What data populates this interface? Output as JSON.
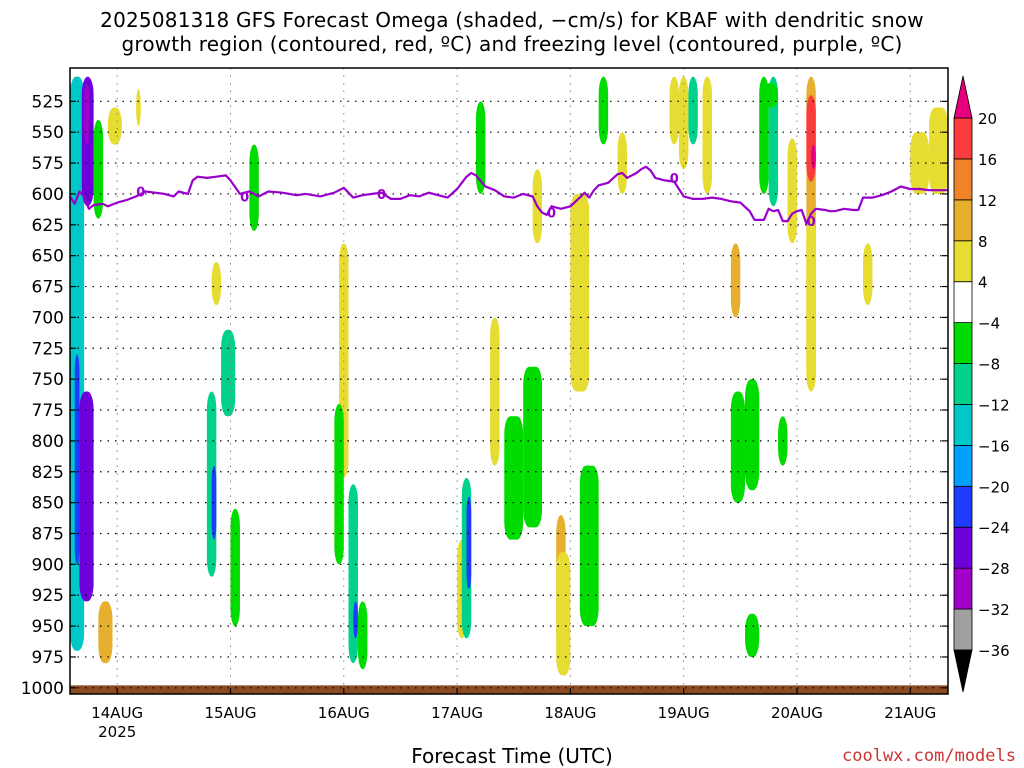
{
  "title_line1": "2025081318 GFS Forecast Omega (shaded, −cm/s) for KBAF with dendritic snow",
  "title_line2": "growth region (contoured, red, ºC) and freezing level (contoured, purple, ºC)",
  "xlabel": "Forecast Time (UTC)",
  "credit": "coolwx.com/models",
  "colors": {
    "credit": "#cc3333",
    "freezing_contour": "#9900cc",
    "terrain": "#8b4a22",
    "grid": "#000000"
  },
  "chart_data": {
    "type": "heatmap",
    "xlabel": "Forecast Time (UTC)",
    "ylabel": "",
    "y_scale": "pressure (hPa, inverted)",
    "ylim": [
      1005,
      498
    ],
    "xlim_hours_from_14AUG00Z": [
      -10,
      176
    ],
    "y_ticks": [
      525,
      550,
      575,
      600,
      625,
      650,
      675,
      700,
      725,
      750,
      775,
      800,
      825,
      850,
      875,
      900,
      925,
      950,
      975,
      1000
    ],
    "x_ticks": [
      {
        "label": "14AUG",
        "hours": 0
      },
      {
        "label": "15AUG",
        "hours": 24
      },
      {
        "label": "16AUG",
        "hours": 48
      },
      {
        "label": "17AUG",
        "hours": 72
      },
      {
        "label": "18AUG",
        "hours": 96
      },
      {
        "label": "19AUG",
        "hours": 120
      },
      {
        "label": "20AUG",
        "hours": 144
      },
      {
        "label": "21AUG",
        "hours": 168
      }
    ],
    "x_year_label": "2025",
    "grid": true,
    "colorbar": {
      "levels": [
        -36,
        -32,
        -28,
        -24,
        -20,
        -16,
        -12,
        -8,
        -4,
        4,
        8,
        12,
        16,
        20
      ],
      "tick_labels": [
        "−36",
        "−32",
        "−28",
        "−24",
        "−20",
        "−16",
        "−12",
        "−8",
        "−4",
        "4",
        "8",
        "12",
        "16",
        "20"
      ],
      "colors": [
        "#000000",
        "#a0a0a0",
        "#a000c8",
        "#6e00dc",
        "#1e3cff",
        "#00a0ff",
        "#00c8c8",
        "#00d28c",
        "#00dc00",
        "#ffffff",
        "#e6dc32",
        "#e6af2d",
        "#f08228",
        "#fa3c3c",
        "#e6007d"
      ]
    },
    "freezing_level": {
      "contour_label": "0",
      "points": [
        [
          -10,
          602
        ],
        [
          -9,
          608
        ],
        [
          -8,
          598
        ],
        [
          -7,
          602
        ],
        [
          -6,
          612
        ],
        [
          -5,
          609
        ],
        [
          -3,
          608
        ],
        [
          -2,
          610
        ],
        [
          0,
          607
        ],
        [
          2,
          605
        ],
        [
          4,
          602
        ],
        [
          6,
          598
        ],
        [
          8,
          599
        ],
        [
          10,
          600
        ],
        [
          12,
          602
        ],
        [
          13,
          598
        ],
        [
          15,
          600
        ],
        [
          16,
          589
        ],
        [
          17,
          586
        ],
        [
          19,
          587
        ],
        [
          21,
          586
        ],
        [
          23,
          585
        ],
        [
          24,
          589
        ],
        [
          26,
          600
        ],
        [
          28,
          598
        ],
        [
          30,
          602
        ],
        [
          32,
          598
        ],
        [
          35,
          599
        ],
        [
          38,
          601
        ],
        [
          40,
          600
        ],
        [
          43,
          602
        ],
        [
          46,
          599
        ],
        [
          48,
          595
        ],
        [
          50,
          603
        ],
        [
          52,
          601
        ],
        [
          54,
          600
        ],
        [
          56,
          599
        ],
        [
          58,
          604
        ],
        [
          60,
          604
        ],
        [
          62,
          601
        ],
        [
          64,
          602
        ],
        [
          66,
          599
        ],
        [
          68,
          601
        ],
        [
          70,
          603
        ],
        [
          72,
          596
        ],
        [
          74,
          586
        ],
        [
          75,
          583
        ],
        [
          76,
          585
        ],
        [
          78,
          594
        ],
        [
          80,
          597
        ],
        [
          82,
          602
        ],
        [
          84,
          603
        ],
        [
          86,
          600
        ],
        [
          88,
          602
        ],
        [
          89,
          610
        ],
        [
          90,
          615
        ],
        [
          91,
          617
        ],
        [
          92,
          610
        ],
        [
          94,
          612
        ],
        [
          96,
          610
        ],
        [
          98,
          603
        ],
        [
          99,
          599
        ],
        [
          100,
          603
        ],
        [
          101,
          597
        ],
        [
          102,
          593
        ],
        [
          104,
          591
        ],
        [
          106,
          584
        ],
        [
          107,
          583
        ],
        [
          108,
          587
        ],
        [
          110,
          583
        ],
        [
          111,
          580
        ],
        [
          112,
          578
        ],
        [
          113,
          581
        ],
        [
          114,
          587
        ],
        [
          116,
          589
        ],
        [
          118,
          590
        ],
        [
          120,
          602
        ],
        [
          122,
          604
        ],
        [
          124,
          604
        ],
        [
          126,
          603
        ],
        [
          128,
          604
        ],
        [
          130,
          606
        ],
        [
          132,
          607
        ],
        [
          134,
          614
        ],
        [
          135,
          621
        ],
        [
          137,
          621
        ],
        [
          138,
          612
        ],
        [
          139,
          614
        ],
        [
          140,
          613
        ],
        [
          141,
          622
        ],
        [
          142,
          622
        ],
        [
          143,
          616
        ],
        [
          144,
          614
        ],
        [
          145,
          613
        ],
        [
          146,
          624
        ],
        [
          147,
          616
        ],
        [
          148,
          612
        ],
        [
          150,
          613
        ],
        [
          151,
          614
        ],
        [
          152,
          614
        ],
        [
          154,
          612
        ],
        [
          156,
          613
        ],
        [
          157,
          613
        ],
        [
          158,
          603
        ],
        [
          160,
          603
        ],
        [
          162,
          601
        ],
        [
          164,
          598
        ],
        [
          166,
          594
        ],
        [
          168,
          596
        ],
        [
          170,
          596
        ],
        [
          172,
          597
        ],
        [
          174,
          597
        ],
        [
          176,
          597
        ]
      ]
    },
    "omega_regions": [
      {
        "t0": -10,
        "t1": -7,
        "p0": 505,
        "p1": 970,
        "value": -14
      },
      {
        "t0": -9,
        "t1": -8,
        "p0": 730,
        "p1": 900,
        "value": -22
      },
      {
        "t0": -7.5,
        "t1": -5,
        "p0": 505,
        "p1": 610,
        "value": -26
      },
      {
        "t0": -7,
        "t1": -6,
        "p0": 510,
        "p1": 560,
        "value": -32
      },
      {
        "t0": -8,
        "t1": -5,
        "p0": 760,
        "p1": 930,
        "value": -28
      },
      {
        "t0": -5,
        "t1": -3,
        "p0": 540,
        "p1": 620,
        "value": -8
      },
      {
        "t0": -4,
        "t1": -1,
        "p0": 930,
        "p1": 980,
        "value": 10
      },
      {
        "t0": -2,
        "t1": 1,
        "p0": 530,
        "p1": 560,
        "value": 5
      },
      {
        "t0": 4,
        "t1": 5,
        "p0": 515,
        "p1": 545,
        "value": 5
      },
      {
        "t0": 20,
        "t1": 22,
        "p0": 655,
        "p1": 690,
        "value": 5
      },
      {
        "t0": 22,
        "t1": 25,
        "p0": 710,
        "p1": 780,
        "value": -10
      },
      {
        "t0": 19,
        "t1": 21,
        "p0": 760,
        "p1": 910,
        "value": -12
      },
      {
        "t0": 20,
        "t1": 21,
        "p0": 820,
        "p1": 880,
        "value": -22
      },
      {
        "t0": 24,
        "t1": 26,
        "p0": 855,
        "p1": 950,
        "value": -8
      },
      {
        "t0": 28,
        "t1": 30,
        "p0": 560,
        "p1": 630,
        "value": -8
      },
      {
        "t0": 47,
        "t1": 49,
        "p0": 640,
        "p1": 830,
        "value": 6
      },
      {
        "t0": 46,
        "t1": 48,
        "p0": 770,
        "p1": 900,
        "value": -8
      },
      {
        "t0": 49,
        "t1": 51,
        "p0": 835,
        "p1": 980,
        "value": -12
      },
      {
        "t0": 50,
        "t1": 51,
        "p0": 930,
        "p1": 960,
        "value": -22
      },
      {
        "t0": 51,
        "t1": 53,
        "p0": 930,
        "p1": 985,
        "value": -8
      },
      {
        "t0": 72,
        "t1": 74,
        "p0": 880,
        "p1": 960,
        "value": 5
      },
      {
        "t0": 73,
        "t1": 75,
        "p0": 830,
        "p1": 960,
        "value": -12
      },
      {
        "t0": 74,
        "t1": 75,
        "p0": 845,
        "p1": 920,
        "value": -24
      },
      {
        "t0": 76,
        "t1": 78,
        "p0": 525,
        "p1": 600,
        "value": -8
      },
      {
        "t0": 79,
        "t1": 81,
        "p0": 700,
        "p1": 820,
        "value": 5
      },
      {
        "t0": 82,
        "t1": 86,
        "p0": 780,
        "p1": 880,
        "value": -8
      },
      {
        "t0": 86,
        "t1": 90,
        "p0": 740,
        "p1": 870,
        "value": -8
      },
      {
        "t0": 88,
        "t1": 90,
        "p0": 580,
        "p1": 640,
        "value": 5
      },
      {
        "t0": 93,
        "t1": 95,
        "p0": 860,
        "p1": 970,
        "value": 10
      },
      {
        "t0": 93,
        "t1": 96,
        "p0": 890,
        "p1": 990,
        "value": 5
      },
      {
        "t0": 96,
        "t1": 100,
        "p0": 600,
        "p1": 760,
        "value": 5
      },
      {
        "t0": 98,
        "t1": 102,
        "p0": 820,
        "p1": 950,
        "value": -8
      },
      {
        "t0": 102,
        "t1": 104,
        "p0": 505,
        "p1": 560,
        "value": -8
      },
      {
        "t0": 106,
        "t1": 108,
        "p0": 550,
        "p1": 600,
        "value": 5
      },
      {
        "t0": 117,
        "t1": 119,
        "p0": 505,
        "p1": 560,
        "value": 5
      },
      {
        "t0": 119,
        "t1": 121,
        "p0": 505,
        "p1": 580,
        "value": 5
      },
      {
        "t0": 121,
        "t1": 123,
        "p0": 505,
        "p1": 560,
        "value": -12
      },
      {
        "t0": 124,
        "t1": 126,
        "p0": 505,
        "p1": 600,
        "value": 5
      },
      {
        "t0": 130,
        "t1": 132,
        "p0": 640,
        "p1": 700,
        "value": 10
      },
      {
        "t0": 130,
        "t1": 133,
        "p0": 760,
        "p1": 850,
        "value": -8
      },
      {
        "t0": 133,
        "t1": 136,
        "p0": 750,
        "p1": 840,
        "value": -8
      },
      {
        "t0": 136,
        "t1": 138,
        "p0": 505,
        "p1": 600,
        "value": -8
      },
      {
        "t0": 138,
        "t1": 140,
        "p0": 505,
        "p1": 610,
        "value": -12
      },
      {
        "t0": 137,
        "t1": 140,
        "p0": 510,
        "p1": 530,
        "value": -8
      },
      {
        "t0": 142,
        "t1": 144,
        "p0": 555,
        "p1": 640,
        "value": 5
      },
      {
        "t0": 140,
        "t1": 142,
        "p0": 780,
        "p1": 820,
        "value": -8
      },
      {
        "t0": 146,
        "t1": 148,
        "p0": 505,
        "p1": 760,
        "value": 10
      },
      {
        "t0": 146,
        "t1": 148,
        "p0": 520,
        "p1": 590,
        "value": 16
      },
      {
        "t0": 147,
        "t1": 148,
        "p0": 560,
        "p1": 580,
        "value": 20
      },
      {
        "t0": 146,
        "t1": 148,
        "p0": 620,
        "p1": 760,
        "value": 5
      },
      {
        "t0": 133,
        "t1": 136,
        "p0": 940,
        "p1": 975,
        "value": -8
      },
      {
        "t0": 158,
        "t1": 160,
        "p0": 640,
        "p1": 690,
        "value": 5
      },
      {
        "t0": 168,
        "t1": 172,
        "p0": 550,
        "p1": 600,
        "value": 5
      },
      {
        "t0": 172,
        "t1": 176,
        "p0": 530,
        "p1": 600,
        "value": 5
      }
    ]
  }
}
